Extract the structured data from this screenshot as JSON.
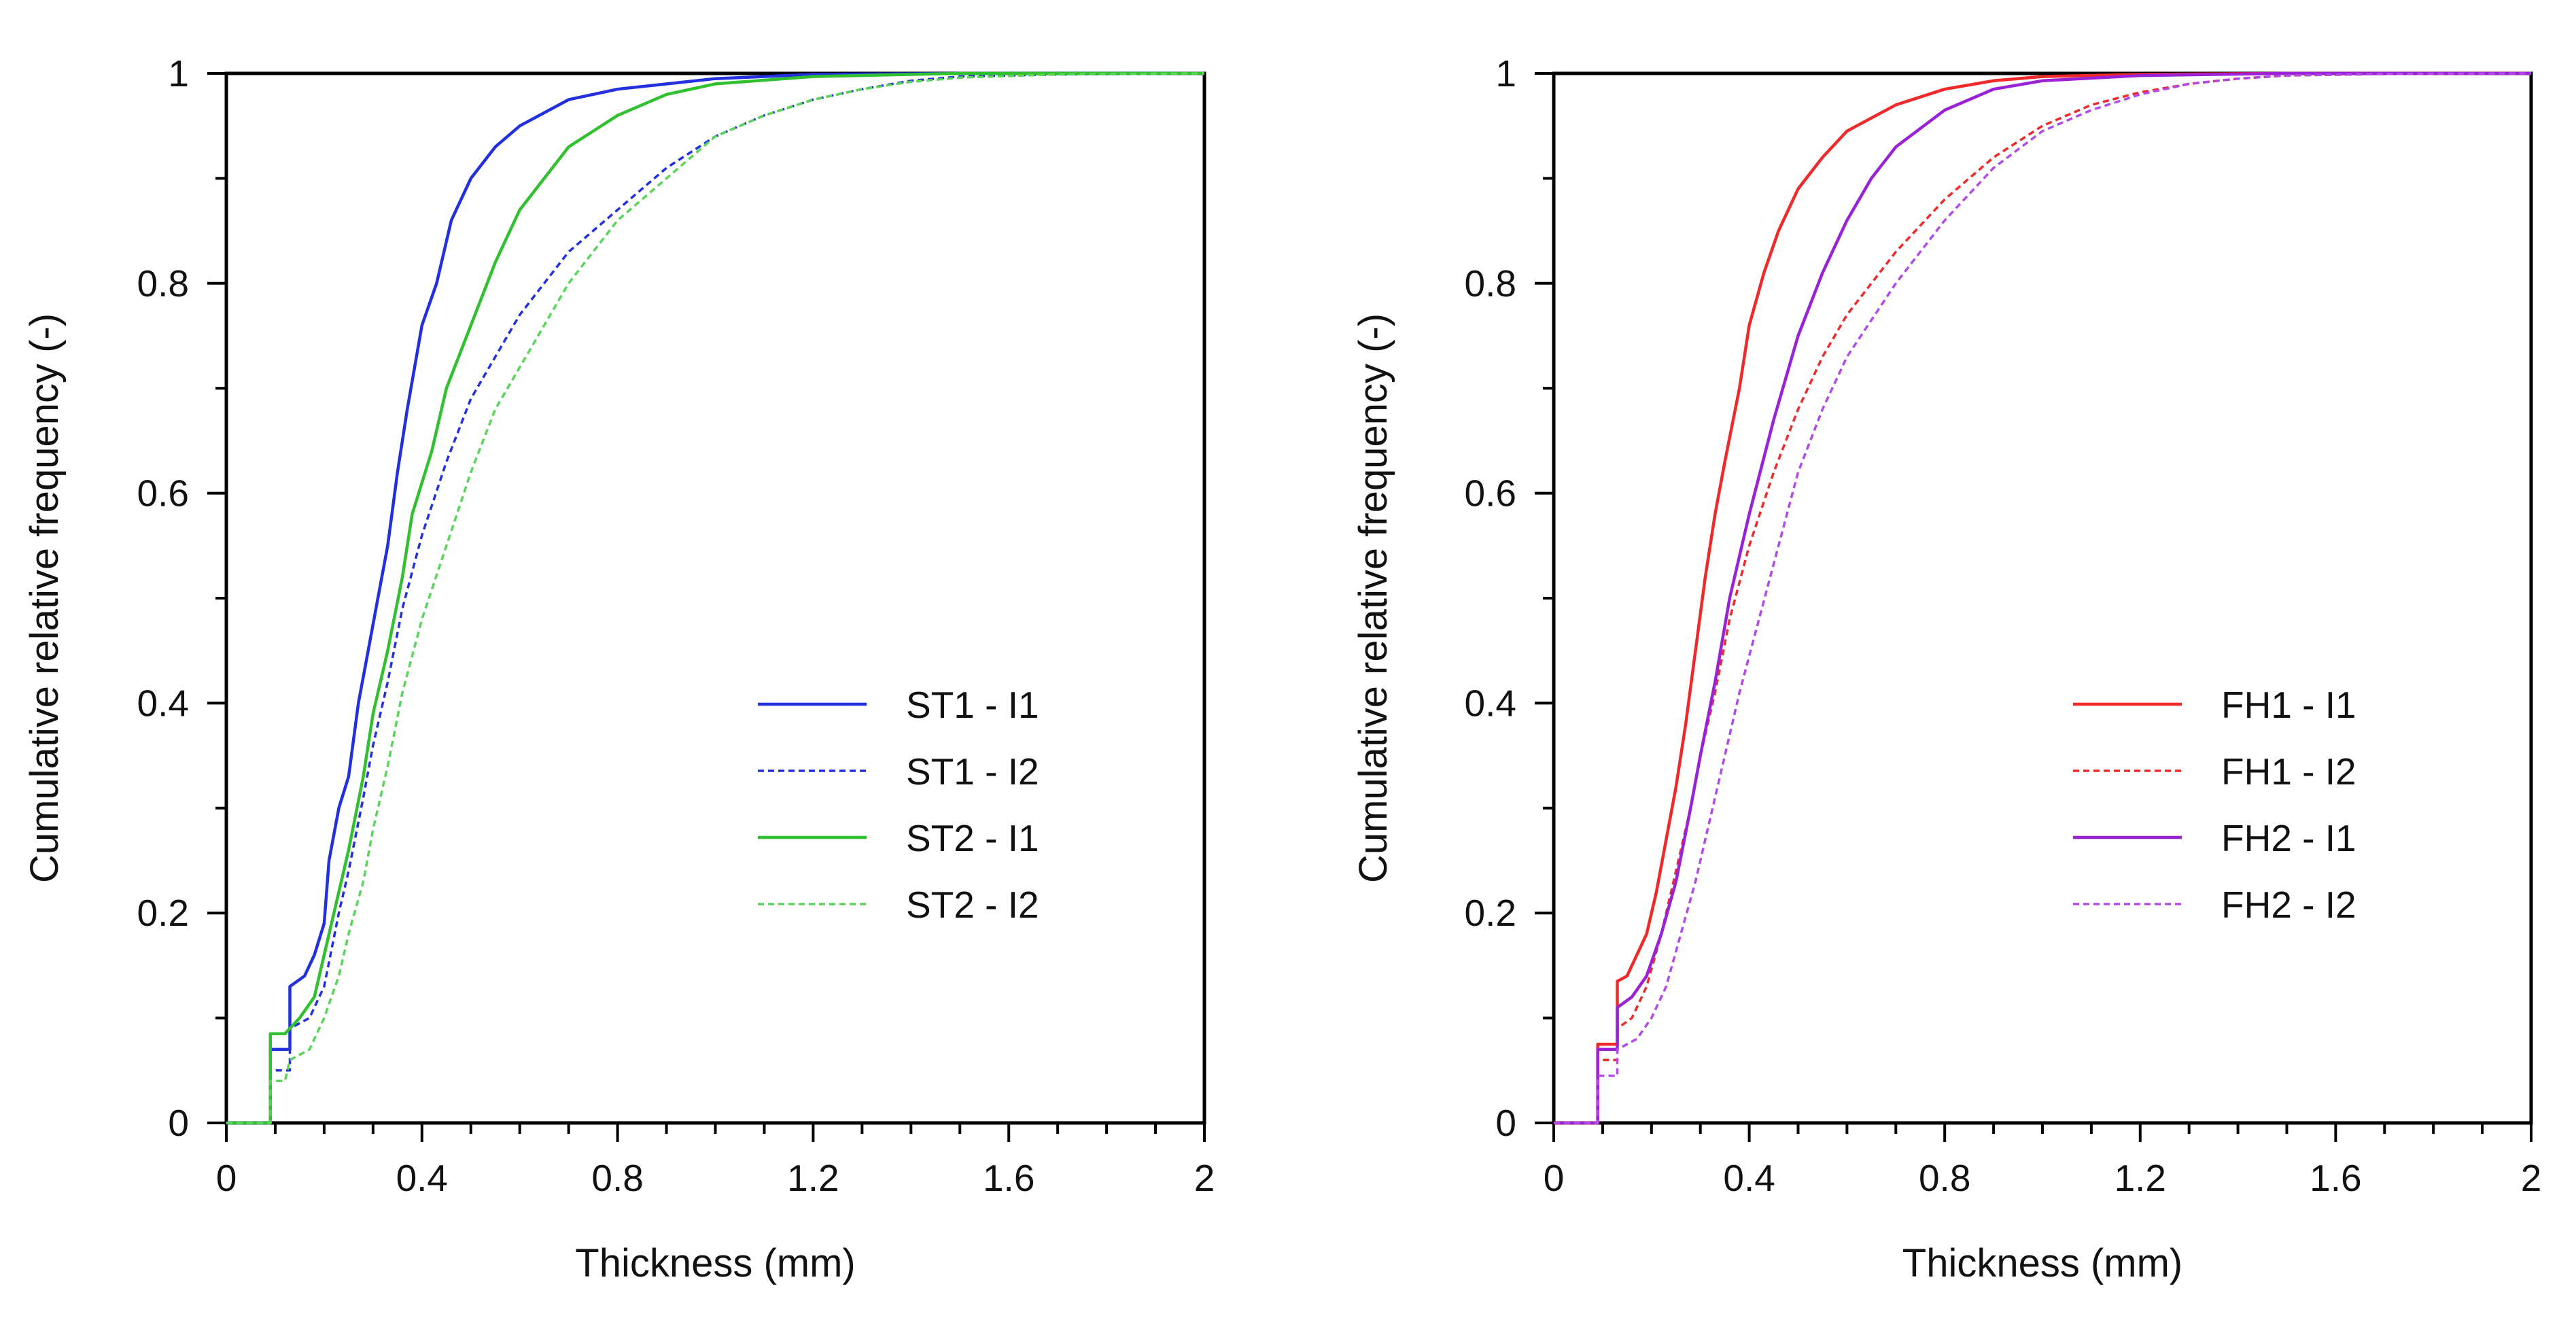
{
  "chart_data": [
    {
      "type": "line",
      "xlabel": "Thickness (mm)",
      "ylabel": "Cumulative relative frequency (-)",
      "xlim": [
        0,
        2
      ],
      "ylim": [
        0,
        1
      ],
      "xticks": [
        "0",
        "0.4",
        "0.8",
        "1.2",
        "1.6",
        "2"
      ],
      "yticks": [
        "0",
        "0.2",
        "0.4",
        "0.6",
        "0.8",
        "1"
      ],
      "grid": false,
      "legend_position": "center-right",
      "series": [
        {
          "name": "ST1 - I1",
          "color": "#2330e0",
          "dash": "solid",
          "points": [
            [
              0,
              0
            ],
            [
              0.09,
              0
            ],
            [
              0.09,
              0.07
            ],
            [
              0.13,
              0.07
            ],
            [
              0.13,
              0.13
            ],
            [
              0.16,
              0.14
            ],
            [
              0.18,
              0.16
            ],
            [
              0.2,
              0.19
            ],
            [
              0.21,
              0.25
            ],
            [
              0.23,
              0.3
            ],
            [
              0.25,
              0.33
            ],
            [
              0.27,
              0.4
            ],
            [
              0.29,
              0.45
            ],
            [
              0.31,
              0.5
            ],
            [
              0.33,
              0.55
            ],
            [
              0.35,
              0.62
            ],
            [
              0.37,
              0.68
            ],
            [
              0.4,
              0.76
            ],
            [
              0.43,
              0.8
            ],
            [
              0.46,
              0.86
            ],
            [
              0.5,
              0.9
            ],
            [
              0.55,
              0.93
            ],
            [
              0.6,
              0.95
            ],
            [
              0.7,
              0.975
            ],
            [
              0.8,
              0.985
            ],
            [
              1.0,
              0.995
            ],
            [
              1.2,
              0.999
            ],
            [
              1.5,
              1.0
            ],
            [
              2.0,
              1.0
            ]
          ]
        },
        {
          "name": "ST1 - I2",
          "color": "#2330e0",
          "dash": "dotted",
          "points": [
            [
              0,
              0
            ],
            [
              0.09,
              0
            ],
            [
              0.09,
              0.05
            ],
            [
              0.13,
              0.05
            ],
            [
              0.13,
              0.09
            ],
            [
              0.17,
              0.1
            ],
            [
              0.2,
              0.13
            ],
            [
              0.23,
              0.2
            ],
            [
              0.25,
              0.24
            ],
            [
              0.28,
              0.31
            ],
            [
              0.3,
              0.36
            ],
            [
              0.33,
              0.42
            ],
            [
              0.36,
              0.49
            ],
            [
              0.4,
              0.56
            ],
            [
              0.45,
              0.63
            ],
            [
              0.5,
              0.69
            ],
            [
              0.55,
              0.73
            ],
            [
              0.6,
              0.77
            ],
            [
              0.7,
              0.83
            ],
            [
              0.8,
              0.87
            ],
            [
              0.9,
              0.91
            ],
            [
              1.0,
              0.94
            ],
            [
              1.1,
              0.96
            ],
            [
              1.2,
              0.975
            ],
            [
              1.3,
              0.985
            ],
            [
              1.4,
              0.993
            ],
            [
              1.5,
              0.997
            ],
            [
              1.7,
              0.999
            ],
            [
              2.0,
              1.0
            ]
          ]
        },
        {
          "name": "ST2 - I1",
          "color": "#30c030",
          "dash": "solid",
          "points": [
            [
              0,
              0
            ],
            [
              0.09,
              0
            ],
            [
              0.09,
              0.085
            ],
            [
              0.12,
              0.085
            ],
            [
              0.13,
              0.09
            ],
            [
              0.15,
              0.1
            ],
            [
              0.18,
              0.12
            ],
            [
              0.2,
              0.16
            ],
            [
              0.22,
              0.2
            ],
            [
              0.25,
              0.26
            ],
            [
              0.28,
              0.33
            ],
            [
              0.3,
              0.39
            ],
            [
              0.33,
              0.45
            ],
            [
              0.36,
              0.52
            ],
            [
              0.38,
              0.58
            ],
            [
              0.42,
              0.64
            ],
            [
              0.45,
              0.7
            ],
            [
              0.5,
              0.76
            ],
            [
              0.55,
              0.82
            ],
            [
              0.6,
              0.87
            ],
            [
              0.65,
              0.9
            ],
            [
              0.7,
              0.93
            ],
            [
              0.8,
              0.96
            ],
            [
              0.9,
              0.98
            ],
            [
              1.0,
              0.99
            ],
            [
              1.2,
              0.997
            ],
            [
              1.5,
              1.0
            ],
            [
              2.0,
              1.0
            ]
          ]
        },
        {
          "name": "ST2 - I2",
          "color": "#5ad45a",
          "dash": "dotted",
          "points": [
            [
              0,
              0
            ],
            [
              0.09,
              0
            ],
            [
              0.09,
              0.04
            ],
            [
              0.12,
              0.04
            ],
            [
              0.13,
              0.06
            ],
            [
              0.17,
              0.07
            ],
            [
              0.2,
              0.1
            ],
            [
              0.23,
              0.14
            ],
            [
              0.25,
              0.18
            ],
            [
              0.28,
              0.23
            ],
            [
              0.3,
              0.28
            ],
            [
              0.33,
              0.34
            ],
            [
              0.36,
              0.41
            ],
            [
              0.4,
              0.48
            ],
            [
              0.45,
              0.55
            ],
            [
              0.5,
              0.62
            ],
            [
              0.55,
              0.68
            ],
            [
              0.6,
              0.72
            ],
            [
              0.7,
              0.8
            ],
            [
              0.8,
              0.86
            ],
            [
              0.9,
              0.9
            ],
            [
              1.0,
              0.94
            ],
            [
              1.1,
              0.96
            ],
            [
              1.2,
              0.975
            ],
            [
              1.3,
              0.985
            ],
            [
              1.4,
              0.992
            ],
            [
              1.5,
              0.996
            ],
            [
              1.7,
              0.999
            ],
            [
              2.0,
              1.0
            ]
          ]
        }
      ]
    },
    {
      "type": "line",
      "xlabel": "Thickness (mm)",
      "ylabel": "Cumulative relative frequency (-)",
      "xlim": [
        0,
        2
      ],
      "ylim": [
        0,
        1
      ],
      "xticks": [
        "0",
        "0.4",
        "0.8",
        "1.2",
        "1.6",
        "2"
      ],
      "yticks": [
        "0",
        "0.2",
        "0.4",
        "0.6",
        "0.8",
        "1"
      ],
      "grid": false,
      "legend_position": "center-right",
      "series": [
        {
          "name": "FH1 - I1",
          "color": "#f02a2a",
          "dash": "solid",
          "points": [
            [
              0,
              0
            ],
            [
              0.09,
              0
            ],
            [
              0.09,
              0.075
            ],
            [
              0.13,
              0.075
            ],
            [
              0.13,
              0.135
            ],
            [
              0.15,
              0.14
            ],
            [
              0.17,
              0.16
            ],
            [
              0.19,
              0.18
            ],
            [
              0.21,
              0.22
            ],
            [
              0.23,
              0.27
            ],
            [
              0.25,
              0.32
            ],
            [
              0.27,
              0.38
            ],
            [
              0.29,
              0.45
            ],
            [
              0.31,
              0.52
            ],
            [
              0.33,
              0.58
            ],
            [
              0.35,
              0.63
            ],
            [
              0.38,
              0.7
            ],
            [
              0.4,
              0.76
            ],
            [
              0.43,
              0.81
            ],
            [
              0.46,
              0.85
            ],
            [
              0.5,
              0.89
            ],
            [
              0.55,
              0.92
            ],
            [
              0.6,
              0.945
            ],
            [
              0.7,
              0.97
            ],
            [
              0.8,
              0.985
            ],
            [
              0.9,
              0.993
            ],
            [
              1.0,
              0.997
            ],
            [
              1.2,
              0.999
            ],
            [
              1.5,
              1.0
            ],
            [
              2.0,
              1.0
            ]
          ]
        },
        {
          "name": "FH1 - I2",
          "color": "#f02a2a",
          "dash": "dotted",
          "points": [
            [
              0,
              0
            ],
            [
              0.09,
              0
            ],
            [
              0.09,
              0.06
            ],
            [
              0.13,
              0.06
            ],
            [
              0.13,
              0.09
            ],
            [
              0.16,
              0.1
            ],
            [
              0.19,
              0.13
            ],
            [
              0.22,
              0.18
            ],
            [
              0.25,
              0.24
            ],
            [
              0.28,
              0.3
            ],
            [
              0.3,
              0.35
            ],
            [
              0.33,
              0.41
            ],
            [
              0.36,
              0.48
            ],
            [
              0.4,
              0.55
            ],
            [
              0.45,
              0.62
            ],
            [
              0.5,
              0.68
            ],
            [
              0.55,
              0.73
            ],
            [
              0.6,
              0.77
            ],
            [
              0.7,
              0.83
            ],
            [
              0.8,
              0.88
            ],
            [
              0.9,
              0.92
            ],
            [
              1.0,
              0.95
            ],
            [
              1.1,
              0.97
            ],
            [
              1.2,
              0.982
            ],
            [
              1.3,
              0.99
            ],
            [
              1.4,
              0.995
            ],
            [
              1.5,
              0.998
            ],
            [
              1.7,
              0.9995
            ],
            [
              2.0,
              1.0
            ]
          ]
        },
        {
          "name": "FH2 - I1",
          "color": "#9a22d6",
          "dash": "solid",
          "points": [
            [
              0,
              0
            ],
            [
              0.09,
              0
            ],
            [
              0.09,
              0.07
            ],
            [
              0.13,
              0.07
            ],
            [
              0.13,
              0.11
            ],
            [
              0.16,
              0.12
            ],
            [
              0.19,
              0.14
            ],
            [
              0.22,
              0.18
            ],
            [
              0.25,
              0.23
            ],
            [
              0.28,
              0.3
            ],
            [
              0.3,
              0.35
            ],
            [
              0.33,
              0.42
            ],
            [
              0.36,
              0.5
            ],
            [
              0.4,
              0.58
            ],
            [
              0.45,
              0.67
            ],
            [
              0.5,
              0.75
            ],
            [
              0.55,
              0.81
            ],
            [
              0.6,
              0.86
            ],
            [
              0.65,
              0.9
            ],
            [
              0.7,
              0.93
            ],
            [
              0.8,
              0.965
            ],
            [
              0.9,
              0.985
            ],
            [
              1.0,
              0.993
            ],
            [
              1.2,
              0.998
            ],
            [
              1.5,
              1.0
            ],
            [
              2.0,
              1.0
            ]
          ]
        },
        {
          "name": "FH2 - I2",
          "color": "#b04ae8",
          "dash": "dotted",
          "points": [
            [
              0,
              0
            ],
            [
              0.09,
              0
            ],
            [
              0.09,
              0.045
            ],
            [
              0.13,
              0.045
            ],
            [
              0.13,
              0.07
            ],
            [
              0.17,
              0.08
            ],
            [
              0.2,
              0.1
            ],
            [
              0.23,
              0.13
            ],
            [
              0.26,
              0.18
            ],
            [
              0.29,
              0.23
            ],
            [
              0.32,
              0.29
            ],
            [
              0.35,
              0.35
            ],
            [
              0.38,
              0.41
            ],
            [
              0.42,
              0.48
            ],
            [
              0.46,
              0.55
            ],
            [
              0.5,
              0.62
            ],
            [
              0.55,
              0.68
            ],
            [
              0.6,
              0.73
            ],
            [
              0.7,
              0.8
            ],
            [
              0.8,
              0.86
            ],
            [
              0.9,
              0.91
            ],
            [
              1.0,
              0.945
            ],
            [
              1.1,
              0.965
            ],
            [
              1.2,
              0.98
            ],
            [
              1.3,
              0.99
            ],
            [
              1.4,
              0.995
            ],
            [
              1.5,
              0.998
            ],
            [
              1.7,
              0.9995
            ],
            [
              2.0,
              1.0
            ]
          ]
        }
      ]
    }
  ]
}
